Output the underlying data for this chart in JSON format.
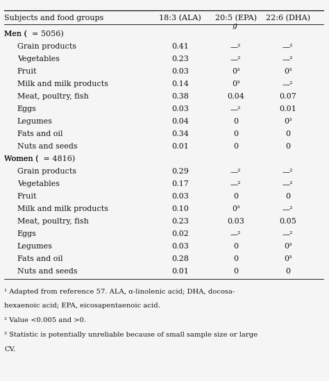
{
  "header_row": [
    "Subjects and food groups",
    "18:3 (ALA)",
    "20:5 (EPA)",
    "22:6 (DHA)"
  ],
  "unit_row": [
    "",
    "",
    "g",
    ""
  ],
  "rows": [
    {
      "label": "Men ( n  = 5056)",
      "indent": false,
      "vals": [
        "",
        "",
        ""
      ]
    },
    {
      "label": "Grain products",
      "indent": true,
      "vals": [
        "0.41",
        "—²",
        "—²"
      ]
    },
    {
      "label": "Vegetables",
      "indent": true,
      "vals": [
        "0.23",
        "—²",
        "—²"
      ]
    },
    {
      "label": "Fruit",
      "indent": true,
      "vals": [
        "0.03",
        "0³",
        "0³"
      ]
    },
    {
      "label": "Milk and milk products",
      "indent": true,
      "vals": [
        "0.14",
        "0³",
        "—²"
      ]
    },
    {
      "label": "Meat, poultry, fish",
      "indent": true,
      "vals": [
        "0.38",
        "0.04",
        "0.07"
      ]
    },
    {
      "label": "Eggs",
      "indent": true,
      "vals": [
        "0.03",
        "—²",
        "0.01"
      ]
    },
    {
      "label": "Legumes",
      "indent": true,
      "vals": [
        "0.04",
        "0",
        "0³"
      ]
    },
    {
      "label": "Fats and oil",
      "indent": true,
      "vals": [
        "0.34",
        "0",
        "0"
      ]
    },
    {
      "label": "Nuts and seeds",
      "indent": true,
      "vals": [
        "0.01",
        "0",
        "0"
      ]
    },
    {
      "label": "Women ( n  = 4816)",
      "indent": false,
      "vals": [
        "",
        "",
        ""
      ]
    },
    {
      "label": "Grain products",
      "indent": true,
      "vals": [
        "0.29",
        "—²",
        "—²"
      ]
    },
    {
      "label": "Vegetables",
      "indent": true,
      "vals": [
        "0.17",
        "—²",
        "—²"
      ]
    },
    {
      "label": "Fruit",
      "indent": true,
      "vals": [
        "0.03",
        "0",
        "0"
      ]
    },
    {
      "label": "Milk and milk products",
      "indent": true,
      "vals": [
        "0.10",
        "0³",
        "—²"
      ]
    },
    {
      "label": "Meat, poultry, fish",
      "indent": true,
      "vals": [
        "0.23",
        "0.03",
        "0.05"
      ]
    },
    {
      "label": "Eggs",
      "indent": true,
      "vals": [
        "0.02",
        "—²",
        "—²"
      ]
    },
    {
      "label": "Legumes",
      "indent": true,
      "vals": [
        "0.03",
        "0",
        "0³"
      ]
    },
    {
      "label": "Fats and oil",
      "indent": true,
      "vals": [
        "0.28",
        "0",
        "0³"
      ]
    },
    {
      "label": "Nuts and seeds",
      "indent": true,
      "vals": [
        "0.01",
        "0",
        "0"
      ]
    }
  ],
  "footnotes": [
    "¹ Adapted from reference 57. ALA, α-linolenic acid; DHA, docosa-",
    "hexaenoic acid; EPA, eicosapentaenoic acid.",
    "² Value <0.005 and >0.",
    "³ Statistic is potentially unreliable because of small sample size or large",
    "CV."
  ],
  "bg_color": "#f5f5f5",
  "text_color": "#111111",
  "font_size": 8.0,
  "header_font_size": 8.0,
  "footnote_font_size": 7.2
}
